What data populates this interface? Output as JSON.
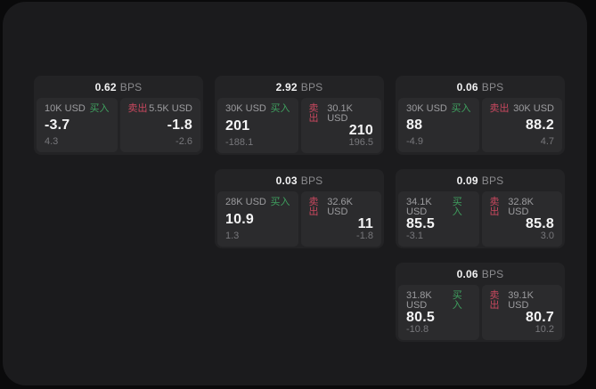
{
  "labels": {
    "bps": "BPS",
    "buy": "买入",
    "sell": "卖出"
  },
  "colors": {
    "background": "#0a0a0b",
    "window": "#1b1b1d",
    "card": "#232325",
    "panel": "#2b2b2d",
    "buy_green": "#3fa05f",
    "sell_red": "#c9485f",
    "value_white": "#f4f4f5",
    "muted_gray": "#9c9c9f",
    "delta_gray": "#77777b"
  },
  "cards": [
    {
      "row": 1,
      "col": 1,
      "bps": "0.62",
      "buy": {
        "size": "10K USD",
        "price": "-3.7",
        "delta": "4.3"
      },
      "sell": {
        "size": "5.5K USD",
        "price": "-1.8",
        "delta": "-2.6"
      }
    },
    {
      "row": 1,
      "col": 2,
      "bps": "2.92",
      "buy": {
        "size": "30K USD",
        "price": "201",
        "delta": "-188.1"
      },
      "sell": {
        "size": "30.1K USD",
        "price": "210",
        "delta": "196.5"
      }
    },
    {
      "row": 1,
      "col": 3,
      "bps": "0.06",
      "buy": {
        "size": "30K USD",
        "price": "88",
        "delta": "-4.9"
      },
      "sell": {
        "size": "30K USD",
        "price": "88.2",
        "delta": "4.7"
      }
    },
    {
      "row": 2,
      "col": 2,
      "bps": "0.03",
      "buy": {
        "size": "28K USD",
        "price": "10.9",
        "delta": "1.3"
      },
      "sell": {
        "size": "32.6K USD",
        "price": "11",
        "delta": "-1.8"
      }
    },
    {
      "row": 2,
      "col": 3,
      "bps": "0.09",
      "buy": {
        "size": "34.1K USD",
        "price": "85.5",
        "delta": "-3.1"
      },
      "sell": {
        "size": "32.8K USD",
        "price": "85.8",
        "delta": "3.0"
      }
    },
    {
      "row": 3,
      "col": 3,
      "bps": "0.06",
      "buy": {
        "size": "31.8K USD",
        "price": "80.5",
        "delta": "-10.8"
      },
      "sell": {
        "size": "39.1K USD",
        "price": "80.7",
        "delta": "10.2"
      }
    }
  ]
}
